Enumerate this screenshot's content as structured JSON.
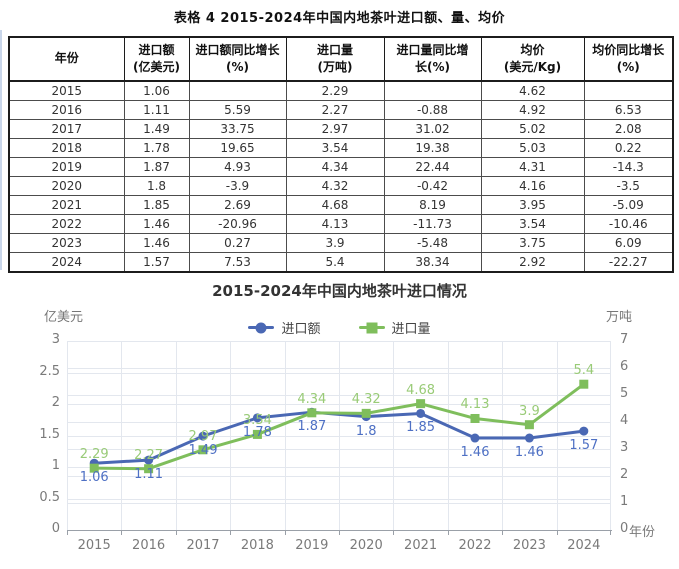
{
  "chart_data": [
    {
      "type": "table",
      "title": "表格 4 2015-2024年中国内地茶叶进口额、量、均价",
      "columns": [
        {
          "l1": "年份",
          "l2": ""
        },
        {
          "l1": "进口额",
          "l2": "(亿美元)"
        },
        {
          "l1": "进口额同比增长",
          "l2": "(%)"
        },
        {
          "l1": "进口量",
          "l2": "(万吨)"
        },
        {
          "l1": "进口量同比增",
          "l2": "长(%)"
        },
        {
          "l1": "均价",
          "l2": "(美元/Kg)"
        },
        {
          "l1": "均价同比增长",
          "l2": "(%)"
        }
      ],
      "rows": [
        [
          "2015",
          "1.06",
          "",
          "2.29",
          "",
          "4.62",
          ""
        ],
        [
          "2016",
          "1.11",
          "5.59",
          "2.27",
          "-0.88",
          "4.92",
          "6.53"
        ],
        [
          "2017",
          "1.49",
          "33.75",
          "2.97",
          "31.02",
          "5.02",
          "2.08"
        ],
        [
          "2018",
          "1.78",
          "19.65",
          "3.54",
          "19.38",
          "5.03",
          "0.22"
        ],
        [
          "2019",
          "1.87",
          "4.93",
          "4.34",
          "22.44",
          "4.31",
          "-14.3"
        ],
        [
          "2020",
          "1.8",
          "-3.9",
          "4.32",
          "-0.42",
          "4.16",
          "-3.5"
        ],
        [
          "2021",
          "1.85",
          "2.69",
          "4.68",
          "8.19",
          "3.95",
          "-5.09"
        ],
        [
          "2022",
          "1.46",
          "-20.96",
          "4.13",
          "-11.73",
          "3.54",
          "-10.46"
        ],
        [
          "2023",
          "1.46",
          "0.27",
          "3.9",
          "-5.48",
          "3.75",
          "6.09"
        ],
        [
          "2024",
          "1.57",
          "7.53",
          "5.4",
          "38.34",
          "2.92",
          "-22.27"
        ]
      ]
    },
    {
      "type": "line",
      "title": "2015-2024年中国内地茶叶进口情况",
      "categories": [
        "2015",
        "2016",
        "2017",
        "2018",
        "2019",
        "2020",
        "2021",
        "2022",
        "2023",
        "2024"
      ],
      "series": [
        {
          "name": "进口额",
          "axis": "left",
          "marker": "circle",
          "color": "#4a68b4",
          "label_color": "#4e70c4",
          "values": [
            1.06,
            1.11,
            1.49,
            1.78,
            1.87,
            1.8,
            1.85,
            1.46,
            1.46,
            1.57
          ],
          "labels": [
            "1.06",
            "1.11",
            "1.49",
            "1.78",
            "1.87",
            "1.8",
            "1.85",
            "1.46",
            "1.46",
            "1.57"
          ]
        },
        {
          "name": "进口量",
          "axis": "right",
          "marker": "square",
          "color": "#7fbe5c",
          "label_color": "#99cb77",
          "values": [
            2.29,
            2.27,
            2.97,
            3.54,
            4.34,
            4.32,
            4.68,
            4.13,
            3.9,
            5.4
          ],
          "labels": [
            "2.29",
            "2.27",
            "2.97",
            "3.54",
            "4.34",
            "4.32",
            "4.68",
            "4.13",
            "3.9",
            "5.4"
          ]
        }
      ],
      "left_axis": {
        "label": "亿美元",
        "min": 0,
        "max": 3,
        "ticks": [
          "3",
          "2.5",
          "2",
          "1.5",
          "1",
          "0.5",
          "0"
        ]
      },
      "right_axis": {
        "label": "万吨",
        "min": 0,
        "max": 7,
        "ticks": [
          "7",
          "6",
          "5",
          "4",
          "3",
          "2",
          "1",
          "0"
        ]
      },
      "x_axis_label": "年份",
      "grid": true,
      "legend_position": "top"
    }
  ]
}
